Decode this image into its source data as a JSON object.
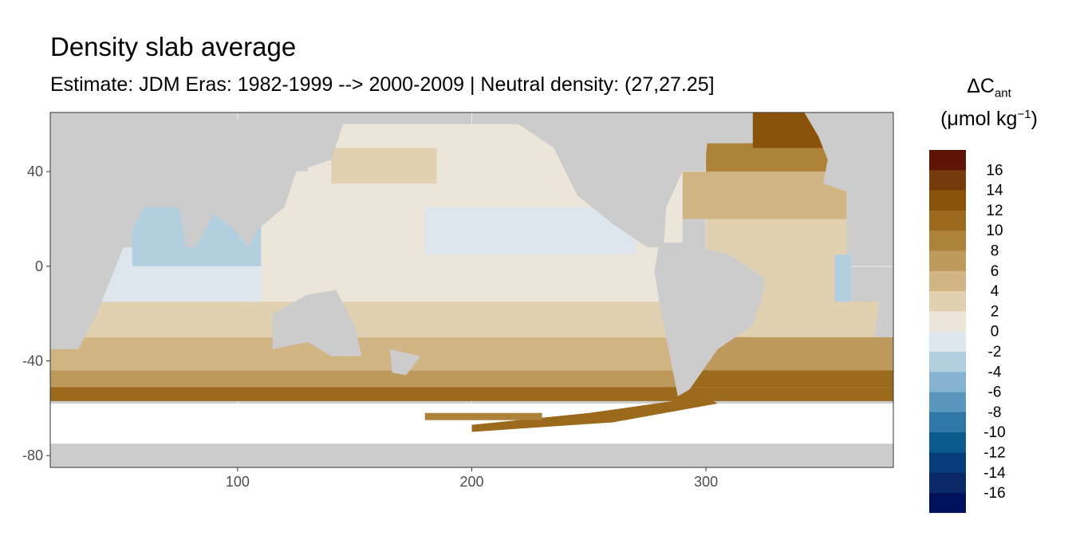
{
  "title": "Density slab average",
  "subtitle": "Estimate: JDM Eras: 1982-1999 --> 2000-2009 | Neutral density: (27,27.25]",
  "legend": {
    "symbol": "ΔC",
    "symbol_sub": "ant",
    "unit_open": "(μmol kg",
    "unit_sup": "−1",
    "unit_close": ")",
    "bins": [
      {
        "label": "16",
        "color": "#5f1407"
      },
      {
        "label": "14",
        "color": "#763b0b"
      },
      {
        "label": "12",
        "color": "#8b5309"
      },
      {
        "label": "10",
        "color": "#9c6a1c"
      },
      {
        "label": "8",
        "color": "#ac8338"
      },
      {
        "label": "6",
        "color": "#bd9a5c"
      },
      {
        "label": "4",
        "color": "#d1b585"
      },
      {
        "label": "2",
        "color": "#e1d1b0"
      },
      {
        "label": "0",
        "color": "#ece6da"
      },
      {
        "label": "-2",
        "color": "#dde6ec"
      },
      {
        "label": "-4",
        "color": "#b2cfe0"
      },
      {
        "label": "-6",
        "color": "#86b4d0"
      },
      {
        "label": "-8",
        "color": "#5896bd"
      },
      {
        "label": "-10",
        "color": "#2e77a6"
      },
      {
        "label": "-12",
        "color": "#0b5a8d"
      },
      {
        "label": "-14",
        "color": "#063d7a"
      },
      {
        "label": "-16",
        "color": "#0a2866"
      }
    ],
    "end_color": "#00105a"
  },
  "chart_data": {
    "type": "heatmap",
    "title": "Density slab average",
    "subtitle": "Estimate: JDM Eras: 1982-1999 --> 2000-2009 | Neutral density: (27,27.25]",
    "xlabel": "",
    "ylabel": "",
    "xlim": [
      20,
      380
    ],
    "ylim": [
      -85,
      65
    ],
    "x_ticks": [
      100,
      200,
      300
    ],
    "y_ticks": [
      40,
      0,
      -40,
      -80
    ],
    "grid": true,
    "legend_position": "right",
    "colors": {
      "land": "#cccccc",
      "no_data": "#ffffff",
      "panel_border": "#333333",
      "grid": "#ebebeb"
    }
  }
}
